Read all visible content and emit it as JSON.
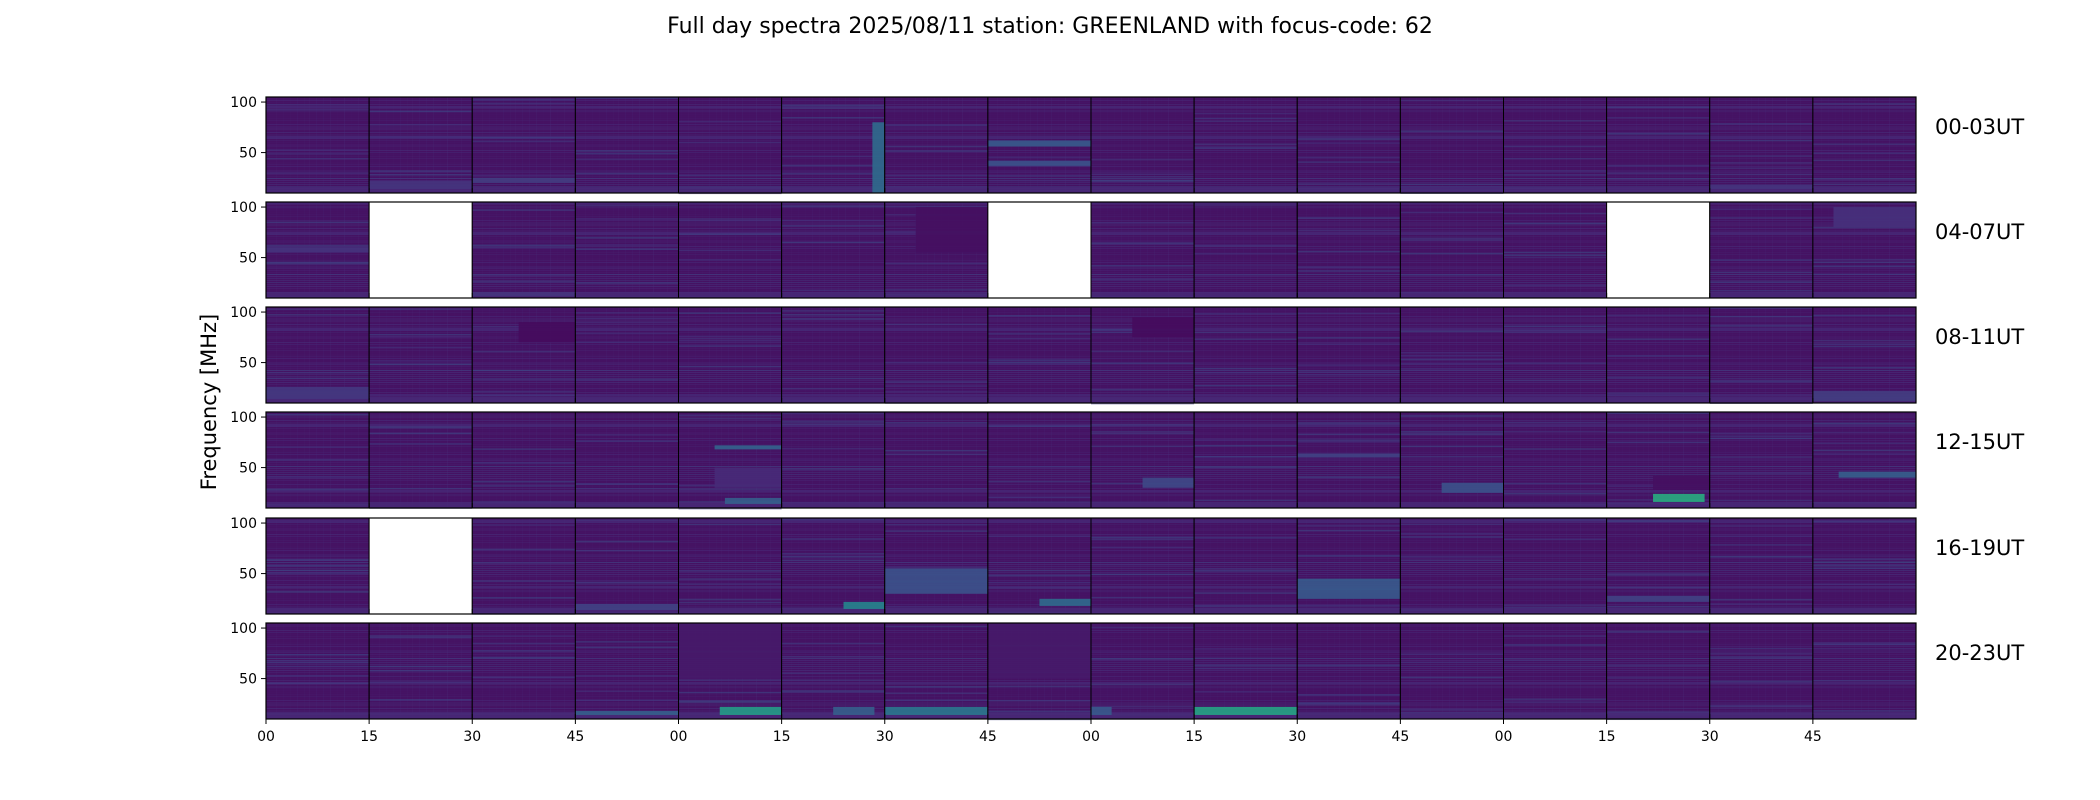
{
  "chart_data": {
    "type": "heatmap",
    "title": "Full day spectra 2025/08/11 station: GREENLAND with focus-code: 62",
    "ylabel": "Frequency [MHz]",
    "ylim": [
      10,
      105
    ],
    "y_ticks": [
      "100",
      "50"
    ],
    "x_ticks": [
      "00",
      "15",
      "30",
      "45",
      "00",
      "15",
      "30",
      "45",
      "00",
      "15",
      "30",
      "45",
      "00",
      "15",
      "30",
      "45"
    ],
    "panels_per_row": 16,
    "panel_minutes": 15,
    "colormap": [
      "#440154",
      "#472c7a",
      "#3b528b",
      "#2c728e",
      "#21918c",
      "#28ae80",
      "#5ec962",
      "#addc30",
      "#fde725"
    ],
    "background_level": 0.05,
    "rows": [
      {
        "label": "00-03UT",
        "missing_panels": [],
        "features": [
          {
            "panel": 5,
            "x": [
              0.88,
              1.0
            ],
            "freq": [
              10,
              80
            ],
            "level": 0.35
          },
          {
            "panel": 7,
            "x": [
              0.0,
              1.0
            ],
            "freq": [
              56,
              62
            ],
            "level": 0.28
          },
          {
            "panel": 7,
            "x": [
              0.0,
              1.0
            ],
            "freq": [
              37,
              42
            ],
            "level": 0.25
          },
          {
            "panel": 1,
            "x": [
              0.0,
              1.0
            ],
            "freq": [
              14,
              22
            ],
            "level": 0.15
          },
          {
            "panel": 2,
            "x": [
              0.0,
              1.0
            ],
            "freq": [
              20,
              25
            ],
            "level": 0.18
          },
          {
            "panel": 14,
            "x": [
              0.0,
              1.0
            ],
            "freq": [
              14,
              18
            ],
            "level": 0.15
          }
        ]
      },
      {
        "label": "04-07UT",
        "missing_panels": [
          1,
          7,
          13
        ],
        "features": [
          {
            "panel": 0,
            "x": [
              0.0,
              1.0
            ],
            "freq": [
              55,
              60
            ],
            "level": 0.15
          },
          {
            "panel": 6,
            "x": [
              0.3,
              1.0
            ],
            "freq": [
              55,
              100
            ],
            "level": 0.04
          },
          {
            "panel": 2,
            "x": [
              0.0,
              1.0
            ],
            "freq": [
              12,
              16
            ],
            "level": 0.15
          },
          {
            "panel": 15,
            "x": [
              0.2,
              1.0
            ],
            "freq": [
              80,
              100
            ],
            "level": 0.14
          }
        ]
      },
      {
        "label": "08-11UT",
        "missing_panels": [],
        "features": [
          {
            "panel": 8,
            "x": [
              0.4,
              1.0
            ],
            "freq": [
              75,
              95
            ],
            "level": 0.03
          },
          {
            "panel": 2,
            "x": [
              0.45,
              1.0
            ],
            "freq": [
              70,
              90
            ],
            "level": 0.03
          },
          {
            "panel": 0,
            "x": [
              0.0,
              1.0
            ],
            "freq": [
              14,
              26
            ],
            "level": 0.16
          },
          {
            "panel": 15,
            "x": [
              0.0,
              1.0
            ],
            "freq": [
              12,
              22
            ],
            "level": 0.18
          }
        ]
      },
      {
        "label": "12-15UT",
        "missing_panels": [],
        "features": [
          {
            "panel": 4,
            "x": [
              0.35,
              1.0
            ],
            "freq": [
              68,
              72
            ],
            "level": 0.32
          },
          {
            "panel": 4,
            "x": [
              0.35,
              1.0
            ],
            "freq": [
              30,
              50
            ],
            "level": 0.12
          },
          {
            "panel": 4,
            "x": [
              0.45,
              1.0
            ],
            "freq": [
              14,
              20
            ],
            "level": 0.3
          },
          {
            "panel": 10,
            "x": [
              0.0,
              1.0
            ],
            "freq": [
              60,
              64
            ],
            "level": 0.2
          },
          {
            "panel": 8,
            "x": [
              0.5,
              1.0
            ],
            "freq": [
              30,
              40
            ],
            "level": 0.22
          },
          {
            "panel": 11,
            "x": [
              0.4,
              1.0
            ],
            "freq": [
              25,
              35
            ],
            "level": 0.25
          },
          {
            "panel": 13,
            "x": [
              0.45,
              0.95
            ],
            "freq": [
              16,
              24
            ],
            "level": 0.62
          },
          {
            "panel": 13,
            "x": [
              0.45,
              1.0
            ],
            "freq": [
              28,
              42
            ],
            "level": 0.04
          },
          {
            "panel": 15,
            "x": [
              0.25,
              1.0
            ],
            "freq": [
              40,
              46
            ],
            "level": 0.3
          }
        ]
      },
      {
        "label": "16-19UT",
        "missing_panels": [
          1
        ],
        "features": [
          {
            "panel": 6,
            "x": [
              0.0,
              1.0
            ],
            "freq": [
              30,
              55
            ],
            "level": 0.25
          },
          {
            "panel": 5,
            "x": [
              0.6,
              1.0
            ],
            "freq": [
              15,
              22
            ],
            "level": 0.45
          },
          {
            "panel": 7,
            "x": [
              0.5,
              1.0
            ],
            "freq": [
              18,
              25
            ],
            "level": 0.35
          },
          {
            "panel": 10,
            "x": [
              0.0,
              1.0
            ],
            "freq": [
              25,
              45
            ],
            "level": 0.28
          },
          {
            "panel": 3,
            "x": [
              0.0,
              1.0
            ],
            "freq": [
              14,
              20
            ],
            "level": 0.2
          },
          {
            "panel": 13,
            "x": [
              0.0,
              1.0
            ],
            "freq": [
              22,
              28
            ],
            "level": 0.2
          }
        ]
      },
      {
        "label": "20-23UT",
        "missing_panels": [],
        "features": [
          {
            "panel": 4,
            "x": [
              0.4,
              1.0
            ],
            "freq": [
              14,
              22
            ],
            "level": 0.55
          },
          {
            "panel": 5,
            "x": [
              0.5,
              0.9
            ],
            "freq": [
              14,
              22
            ],
            "level": 0.3
          },
          {
            "panel": 6,
            "x": [
              0.0,
              1.0
            ],
            "freq": [
              14,
              22
            ],
            "level": 0.4
          },
          {
            "panel": 8,
            "x": [
              0.0,
              0.2
            ],
            "freq": [
              14,
              22
            ],
            "level": 0.28
          },
          {
            "panel": 9,
            "x": [
              0.0,
              1.0
            ],
            "freq": [
              14,
              22
            ],
            "level": 0.58
          },
          {
            "panel": 3,
            "x": [
              0.0,
              1.0
            ],
            "freq": [
              14,
              18
            ],
            "level": 0.3
          },
          {
            "panel": 4,
            "x": [
              0.0,
              1.0
            ],
            "freq": [
              50,
              105
            ],
            "level": 0.07
          },
          {
            "panel": 7,
            "x": [
              0.0,
              1.0
            ],
            "freq": [
              50,
              105
            ],
            "level": 0.07
          }
        ]
      }
    ]
  }
}
